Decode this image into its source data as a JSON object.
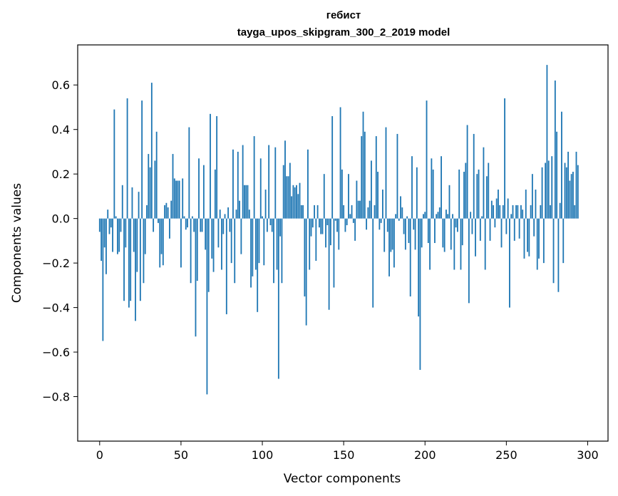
{
  "chart_data": {
    "type": "bar",
    "title": "гебист",
    "subtitle": "tayga_upos_skipgram_300_2_2019 model",
    "xlabel": "Vector components",
    "ylabel": "Components values",
    "xlim": [
      -13.5,
      312.5
    ],
    "ylim": [
      -1.0,
      0.78
    ],
    "x_ticks": [
      0,
      50,
      100,
      150,
      200,
      250,
      300
    ],
    "x_tick_labels": [
      "0",
      "50",
      "100",
      "150",
      "200",
      "250",
      "300"
    ],
    "y_ticks": [
      -0.8,
      -0.6,
      -0.4,
      -0.2,
      0.0,
      0.2,
      0.4,
      0.6
    ],
    "y_tick_labels": [
      "−0.8",
      "−0.6",
      "−0.4",
      "−0.2",
      "0.0",
      "0.2",
      "0.4",
      "0.6"
    ],
    "grid": false,
    "bar_color": "#1f77b4",
    "x_start": 0,
    "values": [
      -0.06,
      -0.19,
      -0.55,
      -0.13,
      -0.25,
      0.04,
      -0.07,
      -0.04,
      -0.15,
      0.49,
      0.01,
      -0.16,
      -0.15,
      -0.06,
      0.15,
      -0.37,
      -0.13,
      0.54,
      -0.4,
      -0.37,
      0.14,
      -0.15,
      -0.46,
      -0.24,
      0.12,
      -0.37,
      0.53,
      -0.29,
      -0.16,
      0.06,
      0.29,
      0.23,
      0.61,
      -0.06,
      0.26,
      0.39,
      -0.02,
      -0.22,
      -0.16,
      -0.21,
      0.06,
      0.07,
      0.05,
      -0.09,
      0.08,
      0.29,
      0.18,
      0.17,
      0.17,
      0.17,
      -0.22,
      0.18,
      0.01,
      -0.05,
      -0.04,
      0.41,
      -0.29,
      0.01,
      -0.06,
      -0.53,
      -0.28,
      0.27,
      -0.06,
      -0.06,
      0.24,
      -0.14,
      -0.79,
      -0.33,
      0.47,
      -0.18,
      -0.24,
      0.22,
      0.46,
      -0.13,
      0.04,
      -0.23,
      -0.07,
      0.02,
      -0.43,
      0.05,
      -0.06,
      -0.2,
      0.31,
      -0.29,
      0.04,
      0.3,
      0.08,
      -0.16,
      0.33,
      0.15,
      0.15,
      0.15,
      0.04,
      -0.31,
      -0.26,
      0.37,
      -0.23,
      -0.42,
      -0.2,
      0.27,
      0.01,
      -0.21,
      0.13,
      -0.06,
      0.33,
      -0.03,
      -0.06,
      -0.29,
      0.32,
      -0.23,
      -0.72,
      -0.08,
      -0.29,
      0.24,
      0.35,
      0.19,
      0.19,
      0.25,
      0.1,
      0.15,
      0.14,
      0.15,
      0.11,
      0.16,
      0.06,
      0.06,
      -0.35,
      -0.48,
      0.31,
      -0.23,
      -0.08,
      -0.04,
      0.06,
      -0.19,
      0.06,
      -0.04,
      -0.07,
      -0.07,
      0.2,
      -0.13,
      -0.03,
      -0.41,
      -0.12,
      0.46,
      -0.31,
      -0.01,
      -0.06,
      -0.14,
      0.5,
      0.22,
      0.06,
      -0.06,
      -0.03,
      0.2,
      0.02,
      0.06,
      -0.02,
      -0.1,
      0.17,
      0.08,
      0.08,
      0.37,
      0.48,
      0.39,
      -0.05,
      0.05,
      0.08,
      0.26,
      -0.4,
      0.06,
      0.37,
      0.21,
      -0.05,
      -0.02,
      0.13,
      -0.15,
      0.41,
      -0.06,
      -0.26,
      -0.15,
      -0.14,
      -0.22,
      0.02,
      0.38,
      -0.01,
      0.1,
      0.05,
      -0.07,
      -0.14,
      0.01,
      -0.11,
      -0.35,
      0.28,
      -0.05,
      -0.14,
      0.23,
      -0.44,
      -0.68,
      -0.13,
      0.02,
      0.03,
      0.53,
      -0.11,
      -0.23,
      0.27,
      0.22,
      -0.11,
      0.02,
      0.03,
      0.05,
      0.28,
      -0.13,
      -0.15,
      0.04,
      0.02,
      0.15,
      -0.14,
      0.02,
      -0.23,
      -0.04,
      -0.06,
      0.22,
      -0.23,
      -0.12,
      0.21,
      0.25,
      0.42,
      -0.38,
      0.03,
      -0.07,
      0.38,
      -0.17,
      0.2,
      0.22,
      -0.1,
      0.01,
      0.32,
      -0.23,
      0.19,
      0.25,
      -0.1,
      0.08,
      0.06,
      -0.04,
      0.09,
      0.13,
      0.06,
      -0.13,
      0.06,
      0.54,
      -0.07,
      0.09,
      -0.4,
      0.02,
      0.06,
      -0.1,
      0.06,
      0.06,
      -0.09,
      0.06,
      0.04,
      -0.18,
      0.13,
      -0.15,
      -0.17,
      0.06,
      0.2,
      -0.08,
      0.13,
      -0.23,
      -0.18,
      0.06,
      0.23,
      -0.2,
      0.25,
      0.69,
      0.26,
      0.06,
      0.28,
      -0.29,
      0.62,
      0.39,
      -0.33,
      0.07,
      0.48,
      -0.2,
      0.25,
      0.23,
      0.3,
      0.17,
      0.2,
      0.21,
      0.06,
      0.3,
      0.24
    ]
  }
}
